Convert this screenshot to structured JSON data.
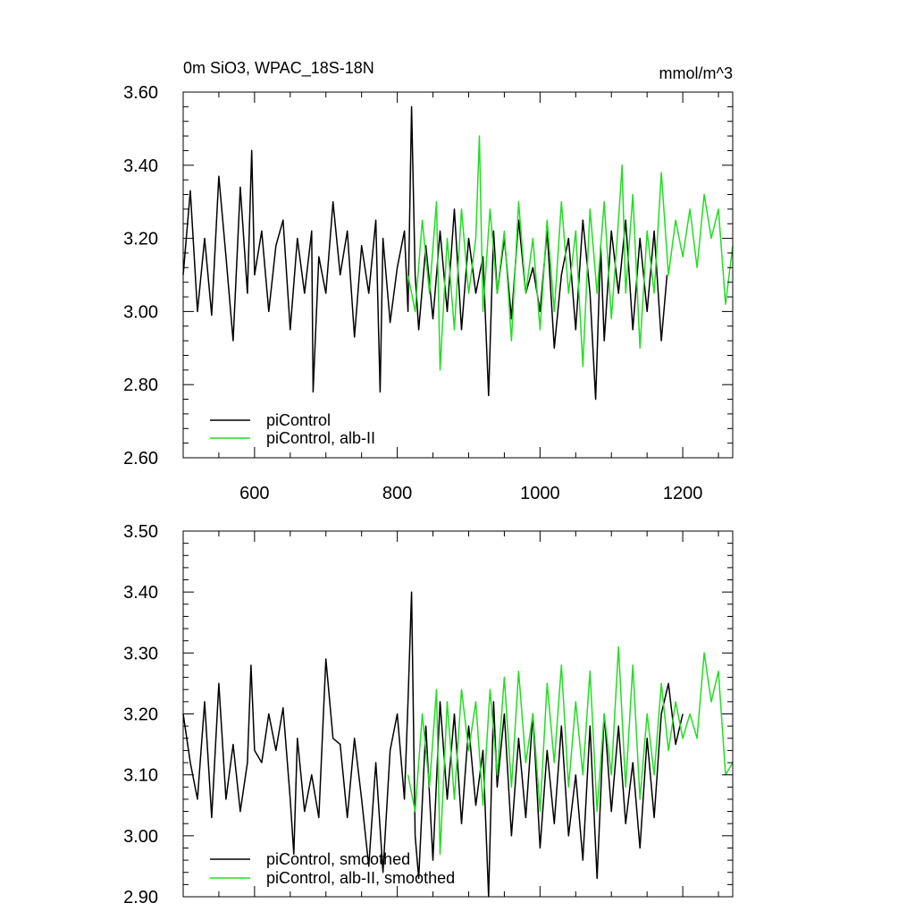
{
  "chart_data": [
    {
      "type": "line",
      "title": "0m SiO3, WPAC_18S-18N",
      "units": "mmol/m^3",
      "xlabel": "",
      "ylabel": "",
      "xlim": [
        500,
        1270
      ],
      "ylim": [
        2.6,
        3.6
      ],
      "x_ticks": [
        600,
        800,
        1000,
        1200
      ],
      "x_tick_labels": [
        "600",
        "800",
        "1000",
        "1200"
      ],
      "y_ticks": [
        2.6,
        2.8,
        3.0,
        3.2,
        3.4,
        3.6
      ],
      "y_tick_labels": [
        "2.60",
        "2.80",
        "3.00",
        "3.20",
        "3.40",
        "3.60"
      ],
      "grid": false,
      "legend_position": "bottom-left",
      "series": [
        {
          "name": "piControl",
          "color": "#000000",
          "x": [
            500,
            510,
            520,
            530,
            540,
            550,
            560,
            570,
            580,
            590,
            596,
            600,
            610,
            620,
            630,
            640,
            650,
            660,
            670,
            680,
            682,
            690,
            700,
            710,
            720,
            730,
            740,
            750,
            760,
            770,
            776,
            780,
            790,
            800,
            810,
            815,
            820,
            825,
            830,
            840,
            850,
            860,
            870,
            880,
            890,
            900,
            910,
            920,
            928,
            935,
            940,
            950,
            960,
            970,
            980,
            990,
            1000,
            1010,
            1020,
            1030,
            1040,
            1050,
            1060,
            1070,
            1078,
            1085,
            1090,
            1100,
            1110,
            1120,
            1130,
            1140,
            1150,
            1160,
            1170,
            1178
          ],
          "y": [
            3.1,
            3.33,
            3.0,
            3.2,
            2.99,
            3.37,
            3.15,
            2.92,
            3.34,
            3.05,
            3.44,
            3.1,
            3.22,
            3.0,
            3.18,
            3.25,
            2.95,
            3.2,
            3.05,
            3.22,
            2.78,
            3.15,
            3.05,
            3.3,
            3.1,
            3.22,
            2.93,
            3.18,
            3.05,
            3.25,
            2.78,
            3.2,
            2.97,
            3.12,
            3.22,
            3.0,
            3.56,
            3.1,
            2.95,
            3.18,
            2.98,
            3.22,
            3.0,
            3.28,
            2.95,
            3.2,
            3.05,
            3.15,
            2.77,
            3.22,
            3.05,
            3.2,
            2.98,
            3.25,
            3.05,
            3.12,
            3.0,
            3.22,
            2.9,
            3.1,
            3.2,
            2.95,
            3.25,
            3.05,
            2.76,
            3.18,
            2.92,
            3.22,
            3.05,
            3.25,
            2.95,
            3.2,
            3.0,
            3.22,
            2.92,
            3.1
          ]
        },
        {
          "name": "piControl, alb-II",
          "color": "#22dd22",
          "x": [
            815,
            825,
            835,
            845,
            855,
            860,
            870,
            880,
            890,
            900,
            910,
            915,
            920,
            930,
            940,
            950,
            960,
            970,
            980,
            990,
            1000,
            1010,
            1020,
            1030,
            1040,
            1050,
            1060,
            1070,
            1080,
            1090,
            1100,
            1110,
            1115,
            1120,
            1130,
            1140,
            1150,
            1160,
            1170,
            1180,
            1190,
            1200,
            1210,
            1220,
            1230,
            1240,
            1250,
            1260,
            1270
          ],
          "y": [
            3.1,
            3.0,
            3.25,
            3.05,
            3.3,
            2.84,
            3.2,
            2.95,
            3.28,
            3.05,
            3.2,
            3.48,
            3.0,
            3.28,
            3.05,
            3.22,
            2.92,
            3.3,
            3.05,
            3.2,
            2.95,
            3.25,
            3.0,
            3.3,
            3.05,
            3.22,
            2.85,
            3.28,
            3.05,
            3.3,
            2.98,
            3.25,
            3.4,
            3.05,
            3.32,
            2.9,
            3.22,
            3.05,
            3.38,
            3.1,
            3.25,
            3.15,
            3.28,
            3.12,
            3.32,
            3.2,
            3.28,
            3.02,
            3.18
          ]
        }
      ]
    },
    {
      "type": "line",
      "title": "",
      "xlabel": "",
      "ylabel": "",
      "xlim": [
        500,
        1270
      ],
      "ylim": [
        2.9,
        3.5
      ],
      "x_ticks": [
        600,
        800,
        1000,
        1200
      ],
      "y_ticks": [
        2.9,
        3.0,
        3.1,
        3.2,
        3.3,
        3.4,
        3.5
      ],
      "y_tick_labels": [
        "2.90",
        "3.00",
        "3.10",
        "3.20",
        "3.30",
        "3.40",
        "3.50"
      ],
      "grid": false,
      "legend_position": "bottom-left",
      "series": [
        {
          "name": "piControl, smoothed",
          "color": "#000000",
          "x": [
            500,
            510,
            520,
            530,
            540,
            550,
            560,
            570,
            580,
            590,
            595,
            600,
            610,
            620,
            630,
            640,
            650,
            655,
            660,
            670,
            680,
            690,
            700,
            710,
            720,
            730,
            740,
            750,
            760,
            770,
            780,
            790,
            800,
            810,
            815,
            820,
            825,
            830,
            840,
            850,
            860,
            870,
            880,
            890,
            900,
            910,
            920,
            928,
            935,
            940,
            950,
            960,
            970,
            980,
            990,
            1000,
            1010,
            1020,
            1030,
            1040,
            1050,
            1060,
            1070,
            1080,
            1090,
            1100,
            1110,
            1120,
            1130,
            1140,
            1150,
            1160,
            1170,
            1180,
            1190,
            1200
          ],
          "y": [
            3.2,
            3.12,
            3.06,
            3.22,
            3.03,
            3.25,
            3.06,
            3.15,
            3.04,
            3.12,
            3.28,
            3.14,
            3.12,
            3.2,
            3.14,
            3.21,
            3.06,
            2.97,
            3.16,
            3.04,
            3.1,
            3.03,
            3.29,
            3.16,
            3.15,
            3.03,
            3.16,
            3.06,
            2.95,
            3.12,
            2.94,
            3.14,
            3.2,
            3.06,
            3.22,
            3.4,
            3.0,
            2.93,
            3.18,
            2.96,
            3.22,
            3.06,
            3.2,
            3.02,
            3.18,
            3.05,
            3.14,
            2.9,
            3.22,
            3.08,
            3.2,
            3.0,
            3.16,
            3.03,
            3.2,
            2.98,
            3.14,
            3.02,
            3.18,
            3.0,
            3.1,
            2.96,
            3.18,
            2.93,
            3.2,
            3.04,
            3.18,
            3.02,
            3.12,
            2.98,
            3.16,
            3.03,
            3.2,
            3.25,
            3.15,
            3.2
          ]
        },
        {
          "name": "piControl, alb-II, smoothed",
          "color": "#22dd22",
          "x": [
            815,
            825,
            835,
            845,
            855,
            860,
            870,
            880,
            890,
            900,
            910,
            920,
            930,
            940,
            950,
            960,
            970,
            980,
            990,
            1000,
            1010,
            1020,
            1030,
            1040,
            1050,
            1060,
            1070,
            1080,
            1090,
            1100,
            1110,
            1120,
            1130,
            1140,
            1150,
            1160,
            1170,
            1180,
            1190,
            1200,
            1210,
            1220,
            1230,
            1240,
            1250,
            1260,
            1270
          ],
          "y": [
            3.1,
            3.04,
            3.2,
            3.08,
            3.24,
            2.97,
            3.22,
            3.06,
            3.24,
            3.14,
            3.22,
            3.05,
            3.24,
            3.1,
            3.26,
            3.08,
            3.27,
            3.12,
            3.2,
            3.04,
            3.25,
            3.12,
            3.28,
            3.08,
            3.22,
            3.1,
            3.27,
            3.04,
            3.2,
            3.1,
            3.31,
            3.08,
            3.28,
            3.06,
            3.2,
            3.1,
            3.25,
            3.14,
            3.22,
            3.16,
            3.2,
            3.16,
            3.3,
            3.22,
            3.27,
            3.1,
            3.12
          ]
        }
      ]
    }
  ]
}
